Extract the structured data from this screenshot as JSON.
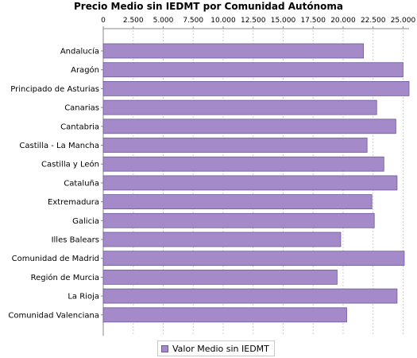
{
  "chart_data": {
    "type": "bar",
    "orientation": "horizontal",
    "title": "Precio Medio sin IEDMT por Comunidad Autónoma",
    "xlabel": "",
    "ylabel": "",
    "xlim": [
      0,
      25500
    ],
    "x_ticks": [
      0,
      2500,
      5000,
      7500,
      10000,
      12500,
      15000,
      17500,
      20000,
      22500,
      25000
    ],
    "x_tick_labels": [
      "0",
      "2.500",
      "5.000",
      "7.500",
      "10.000",
      "12.500",
      "15.000",
      "17.500",
      "20.000",
      "22.500",
      "25.000"
    ],
    "x_axis_position": "top",
    "grid": true,
    "legend_position": "bottom",
    "categories": [
      "Andalucía",
      "Aragón",
      "Principado de Asturias",
      "Canarias",
      "Cantabria",
      "Castilla - La Mancha",
      "Castilla y León",
      "Cataluña",
      "Extremadura",
      "Galicia",
      "Illes Balears",
      "Comunidad de Madrid",
      "Región de Murcia",
      "La Rioja",
      "Comunidad Valenciana"
    ],
    "series": [
      {
        "name": "Valor Medio sin IEDMT",
        "color": "#a48ac8",
        "values": [
          21700,
          25000,
          25500,
          22800,
          24400,
          22000,
          23400,
          24500,
          22400,
          22600,
          19800,
          25100,
          19500,
          24500,
          20300
        ]
      }
    ]
  },
  "colors": {
    "bar_fill": "#a48ac8",
    "bar_stroke": "#6b5a9a",
    "grid": "#cfcfcf",
    "axis": "#888888"
  }
}
